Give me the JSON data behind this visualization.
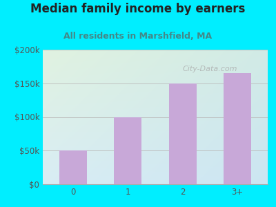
{
  "title": "Median family income by earners",
  "subtitle": "All residents in Marshfield, MA",
  "categories": [
    "0",
    "1",
    "2",
    "3+"
  ],
  "values": [
    50000,
    100000,
    150000,
    165000
  ],
  "bar_color": "#c8a8d8",
  "ylim": [
    0,
    200000
  ],
  "yticks": [
    0,
    50000,
    100000,
    150000,
    200000
  ],
  "ytick_labels": [
    "$0",
    "$50k",
    "$100k",
    "$150k",
    "$200k"
  ],
  "bg_outer": "#00eeff",
  "bg_corner_tl": "#e0f0e0",
  "bg_corner_tr": "#d0e8e8",
  "bg_corner_bl": "#d8eef8",
  "bg_corner_br": "#c8e4f0",
  "title_color": "#222222",
  "subtitle_color": "#448888",
  "title_fontsize": 12,
  "subtitle_fontsize": 9,
  "watermark": "City-Data.com",
  "tick_label_color": "#555555",
  "grid_color": "#bbbbbb"
}
